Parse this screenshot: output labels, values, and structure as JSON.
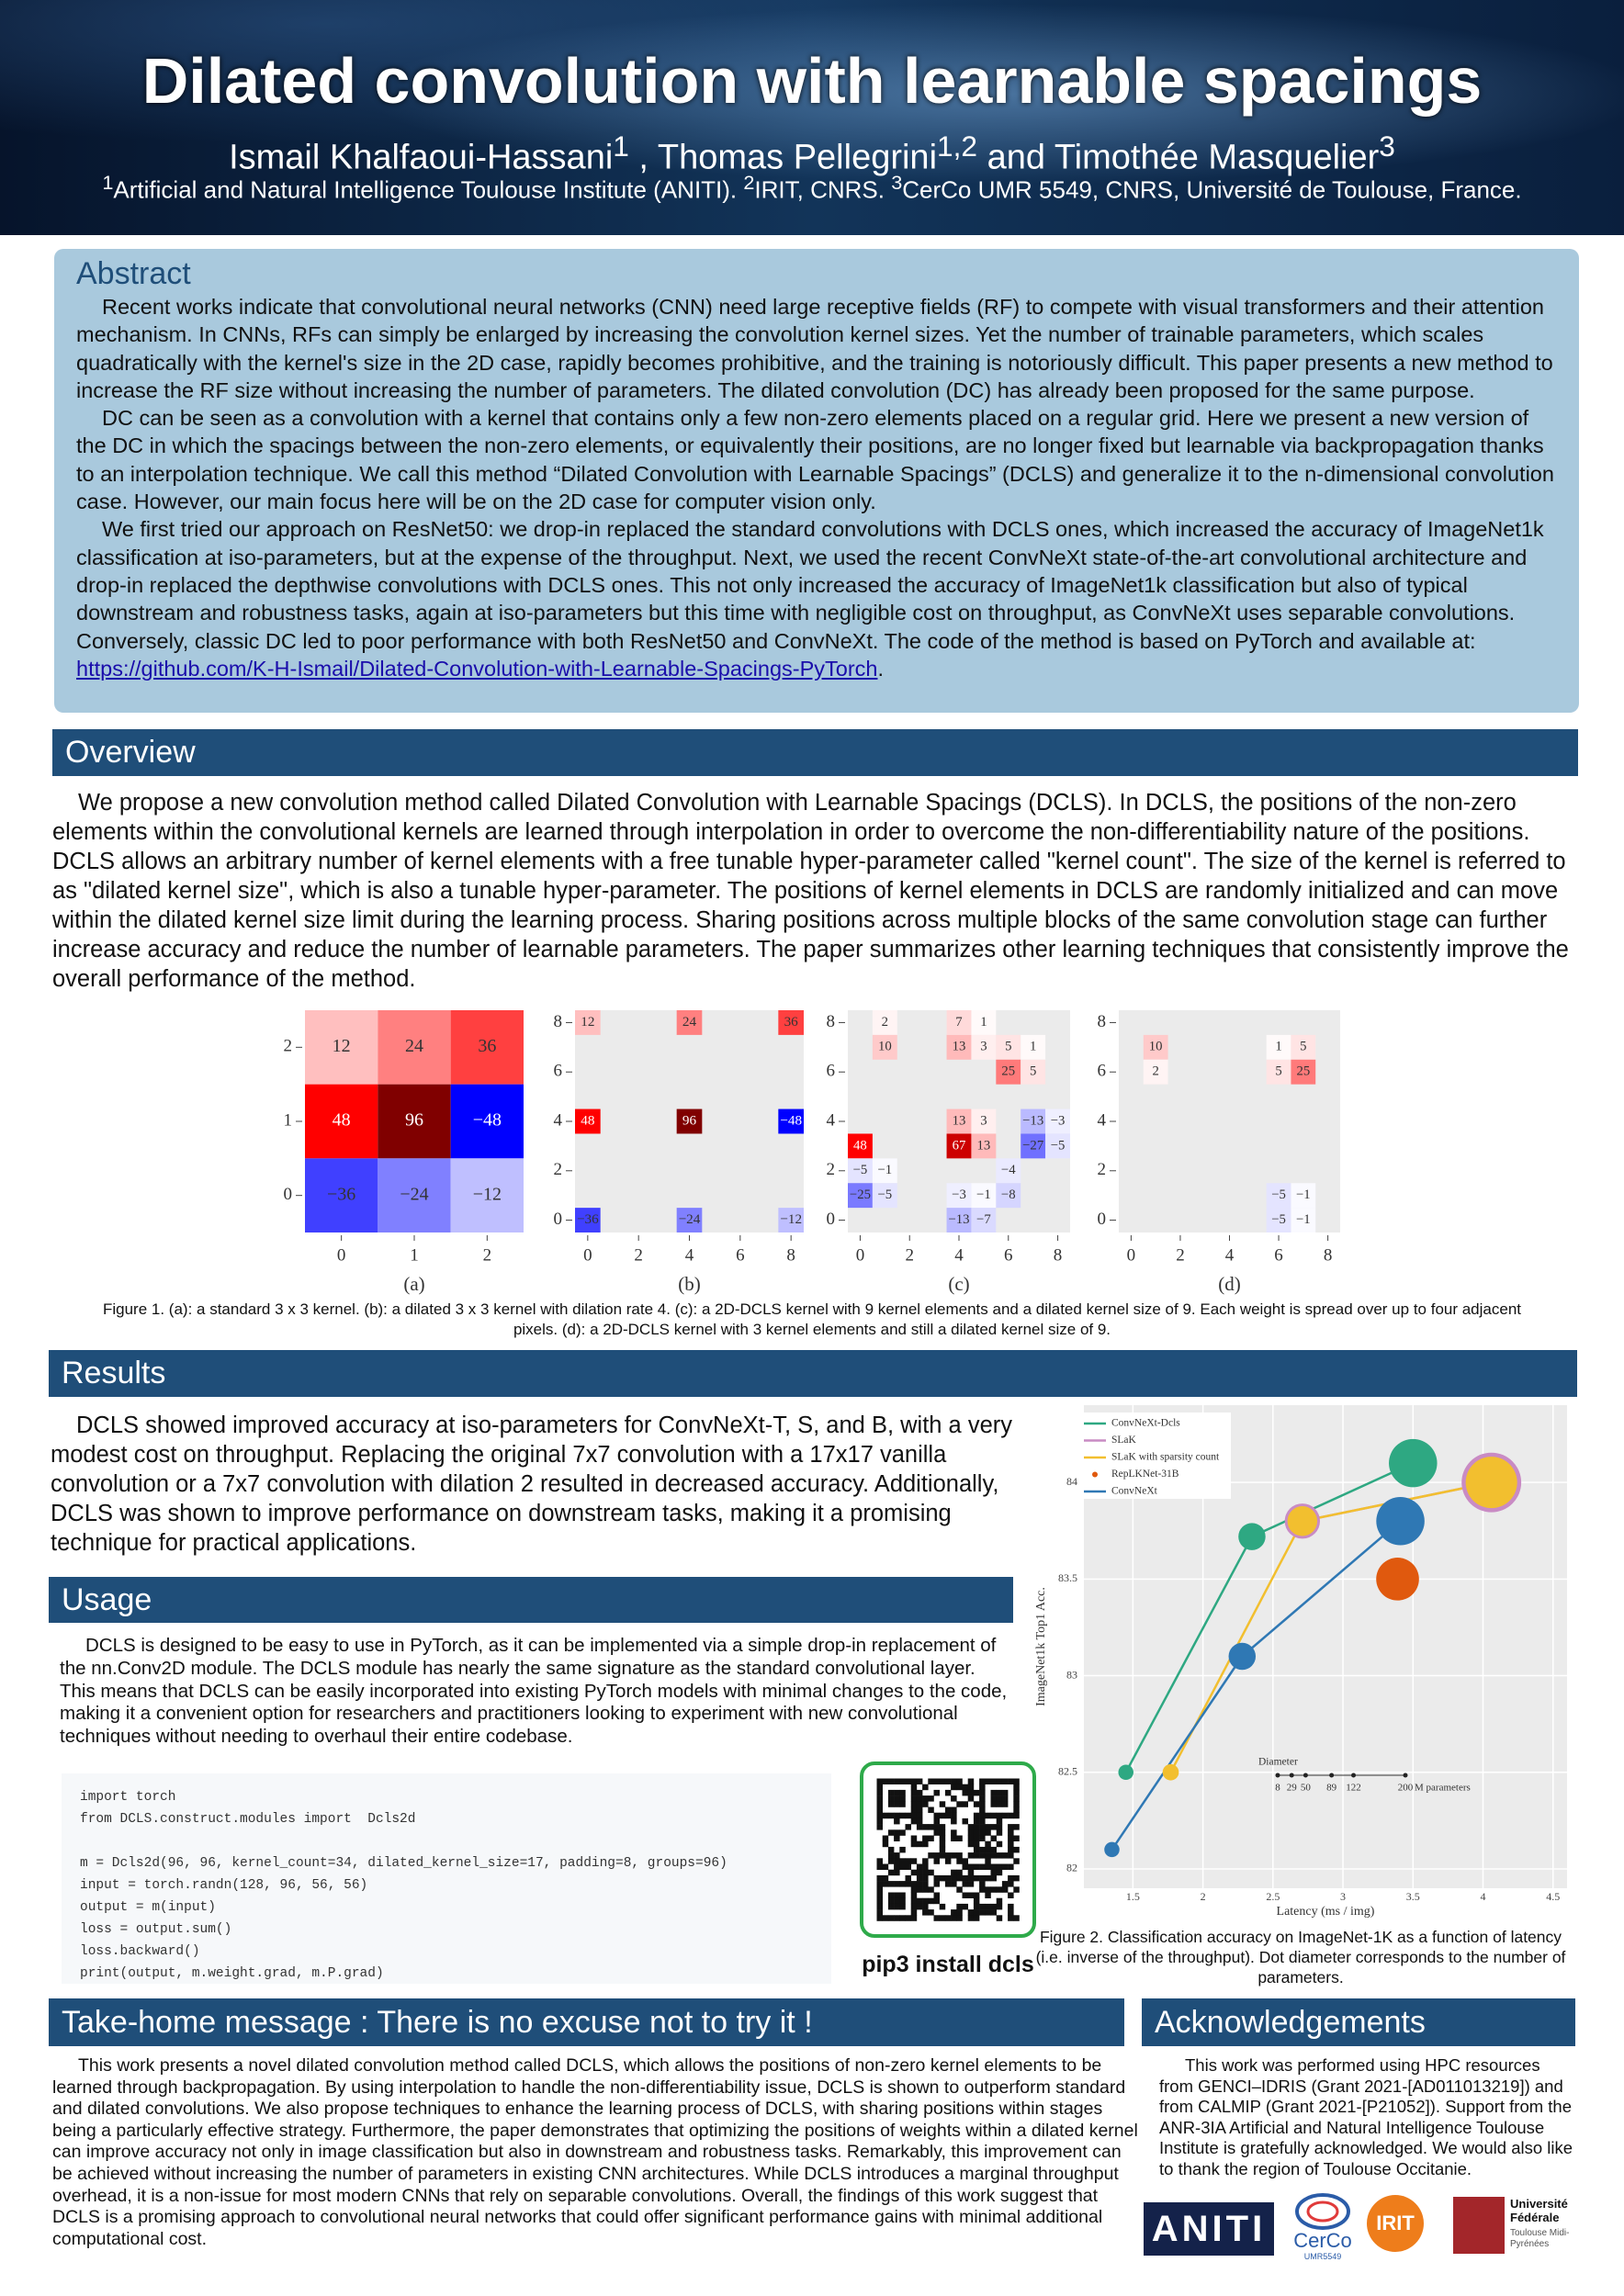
{
  "header": {
    "title": "Dilated convolution with learnable spacings",
    "authors": [
      {
        "name": "Ismail Khalfaoui-Hassani",
        "affil": "1"
      },
      {
        "name": "Thomas Pellegrini",
        "affil": "1,2"
      },
      {
        "name": "Timothée Masquelier",
        "affil": "3"
      }
    ],
    "separators": [
      " , ",
      " and "
    ],
    "affiliations": [
      {
        "mark": "1",
        "text": "Artificial and Natural Intelligence Toulouse Institute (ANITI). "
      },
      {
        "mark": "2",
        "text": "IRIT, CNRS. "
      },
      {
        "mark": "3",
        "text": "CerCo UMR 5549, CNRS, Université de Toulouse, France."
      }
    ]
  },
  "abstract": {
    "heading": "Abstract",
    "paragraphs": [
      "Recent works indicate that convolutional neural networks (CNN) need large receptive fields (RF) to compete with visual transformers and their attention mechanism. In CNNs, RFs can simply be enlarged by increasing the convolution kernel sizes. Yet the number of trainable parameters, which scales quadratically with the kernel's size in the 2D case, rapidly becomes prohibitive, and the training is notoriously difficult. This paper presents a new method to increase the RF size without increasing the number of parameters. The dilated convolution (DC) has already been proposed for the same purpose.",
      "DC can be seen as a convolution with a kernel that contains only a few non-zero elements placed on a regular grid. Here we present a new version of the DC in which the spacings between the non-zero elements, or equivalently their positions, are no longer fixed but learnable via backpropagation thanks to an interpolation technique. We call this method “Dilated Convolution with Learnable Spacings” (DCLS) and generalize it to the n-dimensional convolution case. However, our main focus here will be on the 2D case for computer vision only.",
      "We first tried our approach on ResNet50: we drop-in replaced the standard convolutions with DCLS ones, which increased the accuracy of ImageNet1k classification at iso-parameters, but at the expense of the throughput. Next, we used the recent ConvNeXt state-of-the-art convolutional architecture and drop-in replaced the depthwise convolutions with DCLS ones. This not only increased the accuracy of ImageNet1k classification but also of typical downstream and robustness tasks, again at iso-parameters but this time with negligible cost on throughput, as ConvNeXt uses separable convolutions. Conversely, classic DC led to poor performance with both ResNet50 and ConvNeXt. The code of the method is based on PyTorch and available at: "
    ],
    "link": "https://github.com/K-H-Ismail/Dilated-Convolution-with-Learnable-Spacings-PyTorch",
    "link_suffix": "."
  },
  "overview": {
    "heading": "Overview",
    "text": "We propose a new convolution method called Dilated Convolution with Learnable Spacings (DCLS). In DCLS, the positions of the non-zero elements within the convolutional kernels are learned through interpolation in order to overcome the non-differentiability nature of the positions. DCLS allows an arbitrary number of kernel elements with a free tunable hyper-parameter called \"kernel count\". The size of the kernel is referred to as \"dilated kernel size\", which is also a tunable hyper-parameter. The positions of kernel elements in DCLS are randomly initialized and can move within the dilated kernel size limit during the learning process. Sharing positions across multiple blocks of the same convolution stage can further increase accuracy and reduce the number of learnable parameters. The paper summarizes other learning techniques that consistently improve the overall performance of the method."
  },
  "figure1": {
    "caption": "Figure 1. (a): a standard 3 x 3 kernel. (b): a dilated 3 x 3 kernel with dilation rate 4. (c): a 2D-DCLS kernel with 9 kernel elements and a dilated kernel size of 9. Each weight is spread over up to four adjacent pixels. (d): a 2D-DCLS kernel with 3 kernel elements and still a dilated kernel size of 9."
  },
  "results": {
    "heading": "Results",
    "text": "DCLS showed improved accuracy at iso-parameters for ConvNeXt-T, S, and B, with a very modest cost on throughput. Replacing the original 7x7 convolution with a 17x17 vanilla convolution or a 7x7 convolution with dilation 2 resulted in decreased accuracy. Additionally, DCLS was shown to improve performance on downstream tasks, making it a promising technique for practical applications."
  },
  "figure2": {
    "caption": "Figure 2. Classification accuracy on ImageNet-1K as a function of latency (i.e. inverse of the throughput). Dot diameter corresponds to the number of parameters."
  },
  "usage": {
    "heading": "Usage",
    "text": "DCLS is designed to be easy to use in PyTorch, as it can be implemented via a simple drop-in replacement of the nn.Conv2D module. The DCLS module has nearly the same signature as the standard convolutional layer. This means that DCLS can be easily incorporated into existing PyTorch models with minimal changes to the code, making it a convenient option for researchers and practitioners looking to experiment with new convolutional techniques without needing to overhaul their entire codebase.",
    "code": [
      [
        "import torch",
        "from DCLS.construct.modules import  Dcls2d"
      ],
      [
        "m = Dcls2d(96, 96, kernel_count=34, dilated_kernel_size=17, padding=8, groups=96)",
        "input = torch.randn(128, 96, 56, 56)",
        "output = m(input)",
        "loss = output.sum()",
        "loss.backward()",
        "print(output, m.weight.grad, m.P.grad)"
      ]
    ],
    "qr_caption": "pip3 install dcls"
  },
  "takehome": {
    "heading": "Take-home message : There is no excuse not to try it !",
    "text": "This work presents a novel dilated convolution method called DCLS, which allows the positions of non-zero kernel elements to be learned through backpropagation. By using interpolation to handle the non-differentiability issue, DCLS is shown to outperform standard and dilated convolutions. We also propose techniques to enhance the learning process of DCLS, with sharing positions within stages being a particularly effective strategy. Furthermore, the paper demonstrates that optimizing the positions of weights within a dilated kernel can improve accuracy not only in image classification but also in downstream and robustness tasks. Remarkably, this improvement can be achieved without increasing the number of parameters in existing CNN architectures. While DCLS introduces a marginal throughput overhead, it is a non-issue for most modern CNNs that rely on separable convolutions. Overall, the findings of this work suggest that DCLS is a promising approach to convolutional neural networks that could offer significant performance gains with minimal additional computational cost."
  },
  "acknowledgements": {
    "heading": "Acknowledgements",
    "text": "This work was performed using HPC resources from GENCI–IDRIS (Grant 2021-[AD011013219]) and from CALMIP (Grant 2021-[P21052]). Support from the ANR-3IA Artificial and Natural Intelligence Toulouse Institute is gratefully acknowledged. We would also like to thank the region of Toulouse Occitanie.",
    "logos": {
      "aniti": "ANITI",
      "cerco": "CerCo",
      "cerco_sub": "UMR5549",
      "irit": "IRIT",
      "univ": "Université Fédérale",
      "univ_sub": "Toulouse Midi-Pyrénées"
    }
  },
  "chart_data": [
    {
      "type": "heatmap",
      "label": "(a)",
      "xlim": [
        -0.5,
        2.5
      ],
      "ylim": [
        -0.5,
        2.5
      ],
      "xticks": [
        0,
        1,
        2
      ],
      "yticks": [
        0,
        1,
        2
      ],
      "x": [
        0,
        1,
        2,
        0,
        1,
        2,
        0,
        1,
        2
      ],
      "y": [
        2,
        2,
        2,
        1,
        1,
        1,
        0,
        0,
        0
      ],
      "values": [
        12,
        24,
        36,
        48,
        96,
        -48,
        -36,
        -24,
        -12
      ],
      "value_labels": [
        "12",
        "24",
        "36",
        "48",
        "96",
        "−48",
        "−36",
        "−24",
        "−12"
      ]
    },
    {
      "type": "heatmap",
      "label": "(b)",
      "background": "#ebebeb",
      "xlim": [
        -0.5,
        8.5
      ],
      "ylim": [
        -0.5,
        8.5
      ],
      "xticks": [
        0,
        2,
        4,
        6,
        8
      ],
      "yticks": [
        0,
        2,
        4,
        6,
        8
      ],
      "x": [
        0,
        4,
        8,
        0,
        4,
        8,
        0,
        4,
        8
      ],
      "y": [
        8,
        8,
        8,
        4,
        4,
        4,
        0,
        0,
        0
      ],
      "values": [
        12,
        24,
        36,
        48,
        96,
        -48,
        -36,
        -24,
        -12
      ],
      "value_labels": [
        "12",
        "24",
        "36",
        "48",
        "96",
        "−48",
        "−36",
        "−24",
        "−12"
      ]
    },
    {
      "type": "heatmap",
      "label": "(c)",
      "background": "#ebebeb",
      "xlim": [
        -0.5,
        8.5
      ],
      "ylim": [
        -0.5,
        8.5
      ],
      "xticks": [
        0,
        2,
        4,
        6,
        8
      ],
      "yticks": [
        0,
        2,
        4,
        6,
        8
      ],
      "x": [
        1,
        4,
        5,
        1,
        4,
        5,
        6,
        7,
        6,
        7,
        4,
        5,
        7,
        8,
        0,
        4,
        5,
        7,
        8,
        0,
        1,
        6,
        0,
        1,
        4,
        5,
        6,
        4,
        5
      ],
      "y": [
        8,
        8,
        8,
        7,
        7,
        7,
        7,
        7,
        6,
        6,
        4,
        4,
        4,
        4,
        3,
        3,
        3,
        3,
        3,
        2,
        2,
        2,
        1,
        1,
        1,
        1,
        1,
        0,
        0
      ],
      "values": [
        2,
        7,
        1,
        10,
        13,
        3,
        5,
        1,
        25,
        5,
        13,
        3,
        -13,
        -3,
        48,
        67,
        13,
        -27,
        -5,
        -5,
        -1,
        -4,
        -25,
        -5,
        -3,
        -1,
        -8,
        -13,
        -7
      ],
      "value_labels": [
        "2",
        "7",
        "1",
        "10",
        "13",
        "3",
        "5",
        "1",
        "25",
        "5",
        "13",
        "3",
        "−13",
        "−3",
        "48",
        "67",
        "13",
        "−27",
        "−5",
        "−5",
        "−1",
        "−4",
        "−25",
        "−5",
        "−3",
        "−1",
        "−8",
        "−13",
        "−7"
      ]
    },
    {
      "type": "heatmap",
      "label": "(d)",
      "background": "#ebebeb",
      "xlim": [
        -0.5,
        8.5
      ],
      "ylim": [
        -0.5,
        8.5
      ],
      "xticks": [
        0,
        2,
        4,
        6,
        8
      ],
      "yticks": [
        0,
        2,
        4,
        6,
        8
      ],
      "x": [
        1,
        1,
        6,
        7,
        6,
        7,
        6,
        7,
        6,
        7
      ],
      "y": [
        7,
        6,
        7,
        7,
        6,
        6,
        1,
        1,
        0,
        0
      ],
      "values": [
        10,
        2,
        1,
        5,
        5,
        25,
        -5,
        -1,
        -5,
        -1
      ],
      "value_labels": [
        "10",
        "2",
        "1",
        "5",
        "5",
        "25",
        "−5",
        "−1",
        "−5",
        "−1"
      ]
    },
    {
      "type": "scatter",
      "x_label": "Latency (ms / img)",
      "y_label": "ImageNet1k Top1 Acc.",
      "grid": true,
      "legend": "top-left",
      "xlim": [
        1.15,
        4.6
      ],
      "ylim": [
        81.9,
        84.4
      ],
      "xticks": [
        1.5,
        2,
        2.5,
        3,
        3.5,
        4,
        4.5
      ],
      "yticks": [
        82,
        82.5,
        83,
        83.5,
        84
      ],
      "series": [
        {
          "name": "ConvNeXt-Dcls",
          "color": "#2ea882",
          "mode": "lines+markers",
          "x": [
            1.45,
            2.35,
            3.5
          ],
          "values": [
            82.5,
            83.72,
            84.1
          ],
          "sizes": [
            28,
            50,
            89
          ]
        },
        {
          "name": "SLaK",
          "color": "#c98bc4",
          "mode": "lines+markers",
          "x": [
            2.71,
            4.06
          ],
          "values": [
            83.8,
            84.0
          ],
          "sizes": [
            65,
            110
          ]
        },
        {
          "name": "SLaK with sparsity count",
          "color": "#f2bf2f",
          "mode": "lines+markers",
          "x": [
            1.77,
            2.71,
            4.06
          ],
          "values": [
            82.5,
            83.8,
            84.0
          ],
          "sizes": [
            30,
            55,
            95
          ]
        },
        {
          "name": "RepLKNet-31B",
          "color": "#e0590e",
          "mode": "markers",
          "x": [
            3.39
          ],
          "values": [
            83.5
          ],
          "sizes": [
            79
          ]
        },
        {
          "name": "ConvNeXt",
          "color": "#2f78b4",
          "mode": "lines+markers",
          "x": [
            1.35,
            2.28,
            3.41
          ],
          "values": [
            82.1,
            83.1,
            83.8
          ],
          "sizes": [
            28,
            50,
            89
          ]
        }
      ],
      "size_legend": {
        "title": "Diameter",
        "values": [
          8,
          29,
          50,
          89,
          122,
          200
        ],
        "unit": "M parameters"
      }
    }
  ]
}
